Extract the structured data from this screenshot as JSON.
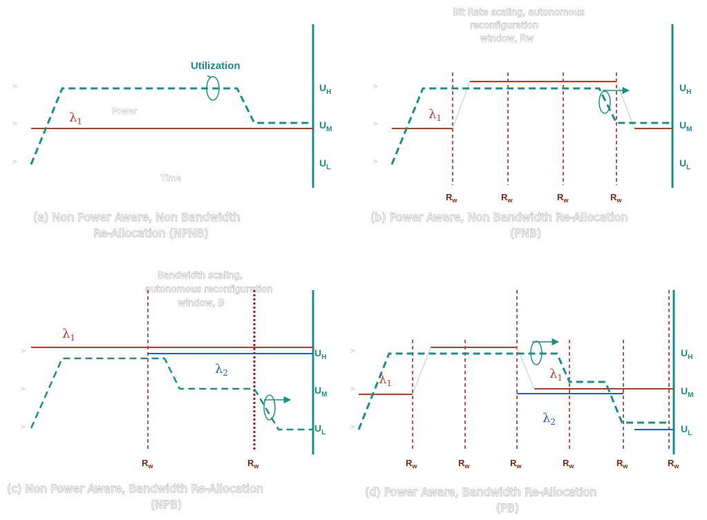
{
  "colors": {
    "utilization": "#1a8f89",
    "lambda1": "#c0391b",
    "lambda2": "#1f5fd0",
    "reconfig_window": "#9b1b1b",
    "axis": "#1a8f89"
  },
  "icons": [
    "ellipse-loop-arrow"
  ],
  "panels": {
    "a": {
      "caption_line1": "(a) Non Power Aware, Non Bandwidth",
      "caption_line2": "Re-Allocation (NPNB)",
      "utilization_label": "Utilization",
      "power_label": "Power",
      "time_label": "Time",
      "lambda1_sym": "λ",
      "lambda1_sub": "1",
      "uh": "U",
      "uh_sub": "H",
      "um": "U",
      "um_sub": "M",
      "ul": "U",
      "ul_sub": "L"
    },
    "b": {
      "caption_line1": "(b) Power Aware, Non Bandwidth Re-Allocation",
      "caption_line2": "(PNB)",
      "note_line1": "Bit Rate scaling, autonomous",
      "note_line2": "reconfiguration",
      "note_line3": "window, Rw",
      "lambda1_sym": "λ",
      "lambda1_sub": "1",
      "rw": "R",
      "rw_sub": "w",
      "uh": "U",
      "uh_sub": "H",
      "um": "U",
      "um_sub": "M",
      "ul": "U",
      "ul_sub": "L"
    },
    "c": {
      "caption_line1": "(c) Non Power Aware, Bandwidth Re-Allocation",
      "caption_line2": "(NPB)",
      "note_line1": "Bandwidth scaling,",
      "note_line2": "autonomous reconfiguration",
      "note_line3": "window, B",
      "lambda1_sym": "λ",
      "lambda1_sub": "1",
      "lambda2_sym": "λ",
      "lambda2_sub": "2",
      "rw": "R",
      "rw_sub": "w",
      "uh": "U",
      "uh_sub": "H",
      "um": "U",
      "um_sub": "M",
      "ul": "U",
      "ul_sub": "L"
    },
    "d": {
      "caption_line1": "(d) Power Aware, Bandwidth Re-Allocation",
      "caption_line2": "(PB)",
      "lambda1_sym": "λ",
      "lambda1_sub": "1",
      "lambda2_sym": "λ",
      "lambda2_sub": "2",
      "rw": "R",
      "rw_sub": "w",
      "uh": "U",
      "uh_sub": "H",
      "um": "U",
      "um_sub": "M",
      "ul": "U",
      "ul_sub": "L"
    }
  },
  "tick_marks": [
    ">",
    ">",
    ">"
  ]
}
